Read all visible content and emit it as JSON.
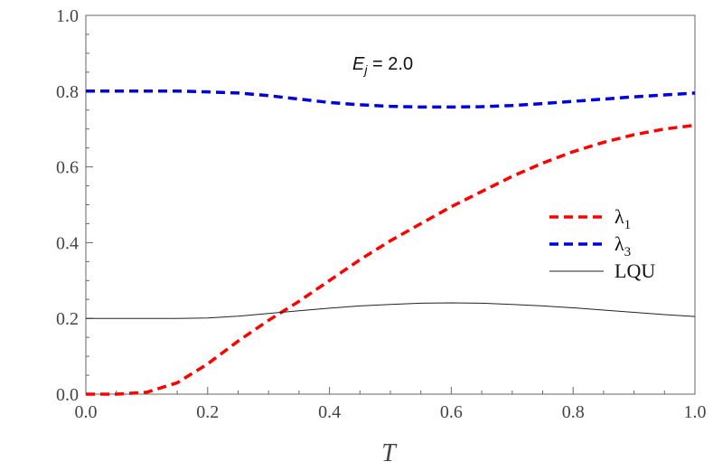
{
  "chart_data": {
    "type": "line",
    "title": "",
    "xlabel": "T",
    "ylabel": "",
    "xlim": [
      0.0,
      1.0
    ],
    "ylim": [
      0.0,
      1.0
    ],
    "x_ticks": [
      "0.0",
      "0.2",
      "0.4",
      "0.6",
      "0.8",
      "1.0"
    ],
    "y_ticks": [
      "0.0",
      "0.2",
      "0.4",
      "0.6",
      "0.8",
      "1.0"
    ],
    "grid": false,
    "legend_position": "right",
    "annotation": {
      "main": "E",
      "sub": "j",
      "rest": " = 2.0"
    },
    "series": [
      {
        "name": "λ1",
        "label_main": "λ",
        "label_sub": "1",
        "color": "#ff0000",
        "style": "dashed",
        "x": [
          0.0,
          0.05,
          0.1,
          0.15,
          0.2,
          0.25,
          0.3,
          0.35,
          0.4,
          0.45,
          0.5,
          0.55,
          0.6,
          0.65,
          0.7,
          0.75,
          0.8,
          0.85,
          0.9,
          0.95,
          1.0
        ],
        "y": [
          0.0,
          0.0,
          0.005,
          0.03,
          0.08,
          0.14,
          0.195,
          0.245,
          0.3,
          0.355,
          0.405,
          0.45,
          0.495,
          0.535,
          0.575,
          0.61,
          0.64,
          0.665,
          0.685,
          0.7,
          0.71
        ]
      },
      {
        "name": "λ3",
        "label_main": "λ",
        "label_sub": "3",
        "color": "#0000dd",
        "style": "dashed",
        "x": [
          0.0,
          0.05,
          0.1,
          0.15,
          0.2,
          0.25,
          0.3,
          0.35,
          0.4,
          0.45,
          0.5,
          0.55,
          0.6,
          0.65,
          0.7,
          0.75,
          0.8,
          0.85,
          0.9,
          0.95,
          1.0
        ],
        "y": [
          0.8,
          0.8,
          0.8,
          0.8,
          0.798,
          0.795,
          0.788,
          0.779,
          0.77,
          0.764,
          0.76,
          0.758,
          0.758,
          0.759,
          0.762,
          0.767,
          0.773,
          0.779,
          0.785,
          0.79,
          0.795
        ]
      },
      {
        "name": "LQU",
        "label_main": "LQU",
        "label_sub": "",
        "color": "#222222",
        "style": "solid",
        "x": [
          0.0,
          0.05,
          0.1,
          0.15,
          0.2,
          0.25,
          0.3,
          0.35,
          0.4,
          0.45,
          0.5,
          0.55,
          0.6,
          0.65,
          0.7,
          0.75,
          0.8,
          0.85,
          0.9,
          0.95,
          1.0
        ],
        "y": [
          0.2,
          0.2,
          0.2,
          0.2,
          0.201,
          0.206,
          0.213,
          0.22,
          0.227,
          0.233,
          0.237,
          0.24,
          0.241,
          0.24,
          0.237,
          0.233,
          0.228,
          0.222,
          0.216,
          0.21,
          0.205
        ]
      }
    ]
  }
}
